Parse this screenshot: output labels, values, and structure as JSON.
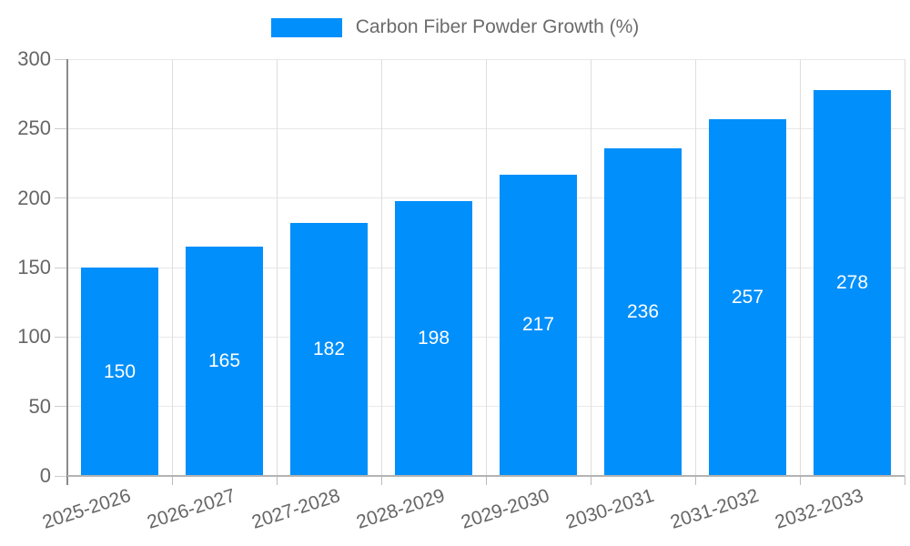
{
  "chart_data": {
    "type": "bar",
    "title": "",
    "legend": "Carbon Fiber Powder Growth (%)",
    "legend_position": "top-center",
    "categories": [
      "2025-2026",
      "2026-2027",
      "2027-2028",
      "2028-2029",
      "2029-2030",
      "2030-2031",
      "2031-2032",
      "2032-2033"
    ],
    "values": [
      150,
      165,
      182,
      198,
      217,
      236,
      257,
      278
    ],
    "xlabel": "",
    "ylabel": "",
    "ylim": [
      0,
      300
    ],
    "yticks": [
      0,
      50,
      100,
      150,
      200,
      250,
      300
    ],
    "grid": true,
    "colors": {
      "bar": "#008FFB",
      "value_label": "#ffffff",
      "axis_text": "#666666",
      "legend_text": "#6b6b6b",
      "grid_line": "#e4e4e4"
    }
  }
}
